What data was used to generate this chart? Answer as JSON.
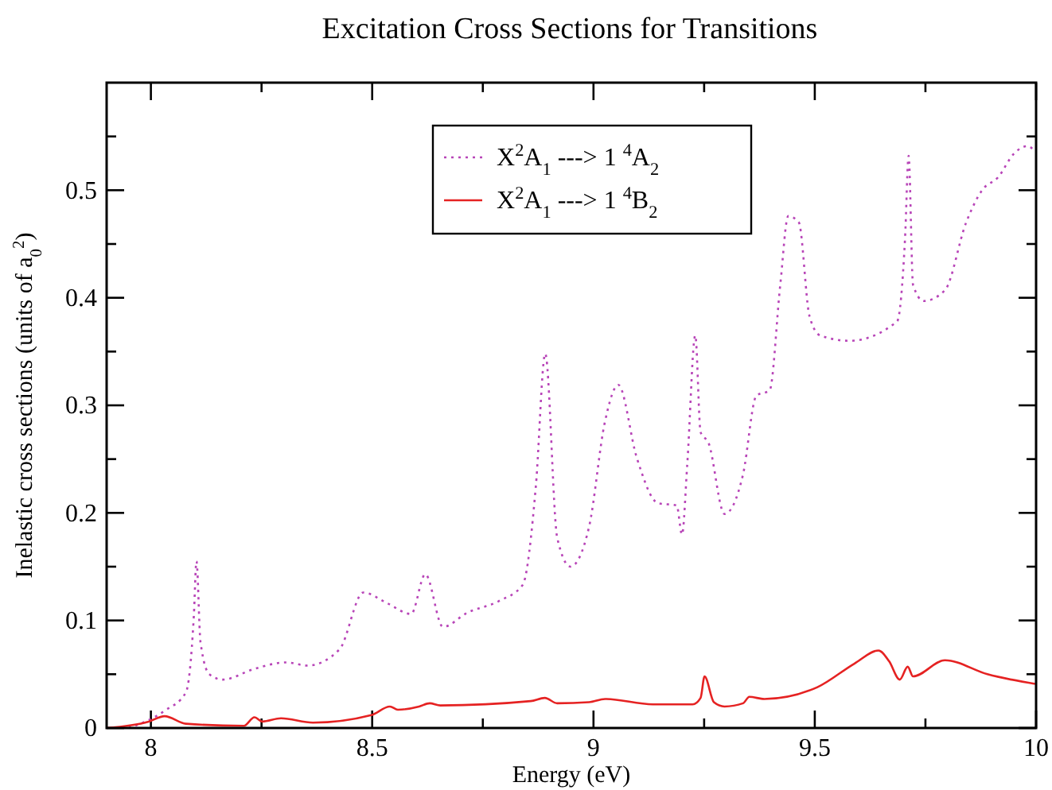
{
  "chart_data": {
    "type": "line",
    "title": "Excitation Cross Sections for Transitions",
    "xlabel": "Energy (eV)",
    "ylabel": "Inelastic cross sections (units of a$_{0}$$^{2}$)",
    "xlim": [
      7.9,
      10
    ],
    "ylim": [
      0,
      0.6
    ],
    "xticks": [
      8,
      {
        "value": 8.25,
        "label": null
      },
      8.5,
      {
        "value": 8.75,
        "label": null
      },
      9,
      {
        "value": 9.25,
        "label": null
      },
      9.5,
      {
        "value": 9.75,
        "label": null
      },
      10
    ],
    "yticks": [
      0,
      {
        "value": 0.05,
        "label": null
      },
      0.1,
      {
        "value": 0.15,
        "label": null
      },
      0.2,
      {
        "value": 0.25,
        "label": null
      },
      0.3,
      {
        "value": 0.35,
        "label": null
      },
      0.4,
      {
        "value": 0.45,
        "label": null
      },
      0.5,
      {
        "value": 0.55,
        "label": null
      }
    ],
    "grid": false,
    "legend": "top",
    "marker": "none",
    "series": [
      {
        "name": "X$^{2}$A$_{1}$ ---> 1 $^{4}$A$_{2}$",
        "color": "#b845b8",
        "line_style": "dotted",
        "x": [
          7.95,
          8.031,
          8.079,
          8.097,
          8.103,
          8.112,
          8.132,
          8.162,
          8.234,
          8.306,
          8.354,
          8.426,
          8.48,
          8.534,
          8.588,
          8.62,
          8.66,
          8.714,
          8.786,
          8.84,
          8.87,
          8.891,
          8.918,
          8.948,
          8.99,
          9.026,
          9.056,
          9.098,
          9.146,
          9.188,
          9.2,
          9.212,
          9.23,
          9.242,
          9.26,
          9.296,
          9.338,
          9.368,
          9.398,
          9.422,
          9.44,
          9.464,
          9.488,
          9.512,
          9.578,
          9.686,
          9.704,
          9.712,
          9.722,
          9.746,
          9.794,
          9.842,
          9.878,
          9.914,
          9.95,
          9.98,
          9.998
        ],
        "values": [
          0.0,
          0.016,
          0.033,
          0.104,
          0.155,
          0.08,
          0.05,
          0.045,
          0.055,
          0.061,
          0.058,
          0.073,
          0.126,
          0.116,
          0.106,
          0.143,
          0.094,
          0.107,
          0.118,
          0.133,
          0.226,
          0.348,
          0.177,
          0.15,
          0.187,
          0.285,
          0.319,
          0.251,
          0.209,
          0.207,
          0.18,
          0.246,
          0.365,
          0.275,
          0.265,
          0.199,
          0.236,
          0.309,
          0.314,
          0.412,
          0.476,
          0.47,
          0.383,
          0.365,
          0.36,
          0.378,
          0.456,
          0.532,
          0.412,
          0.397,
          0.407,
          0.47,
          0.5,
          0.512,
          0.534,
          0.541,
          0.536
        ]
      },
      {
        "name": "X$^{2}$A$_{1}$ ---> 1 $^{4}$B$_{2}$",
        "color": "#e52222",
        "line_style": "solid",
        "x": [
          7.9,
          7.995,
          8.031,
          8.079,
          8.21,
          8.234,
          8.252,
          8.294,
          8.366,
          8.498,
          8.54,
          8.558,
          8.606,
          8.63,
          8.654,
          8.858,
          8.89,
          8.918,
          8.99,
          9.026,
          9.134,
          9.224,
          9.242,
          9.251,
          9.272,
          9.296,
          9.338,
          9.352,
          9.386,
          9.506,
          9.59,
          9.644,
          9.668,
          9.692,
          9.71,
          9.722,
          9.794,
          9.89,
          9.998
        ],
        "values": [
          0,
          0.006,
          0.011,
          0.004,
          0.002,
          0.01,
          0.006,
          0.009,
          0.005,
          0.012,
          0.02,
          0.017,
          0.02,
          0.023,
          0.021,
          0.025,
          0.028,
          0.023,
          0.024,
          0.027,
          0.022,
          0.022,
          0.028,
          0.048,
          0.024,
          0.02,
          0.023,
          0.029,
          0.027,
          0.038,
          0.06,
          0.072,
          0.062,
          0.045,
          0.057,
          0.048,
          0.063,
          0.05,
          0.041
        ]
      }
    ]
  }
}
